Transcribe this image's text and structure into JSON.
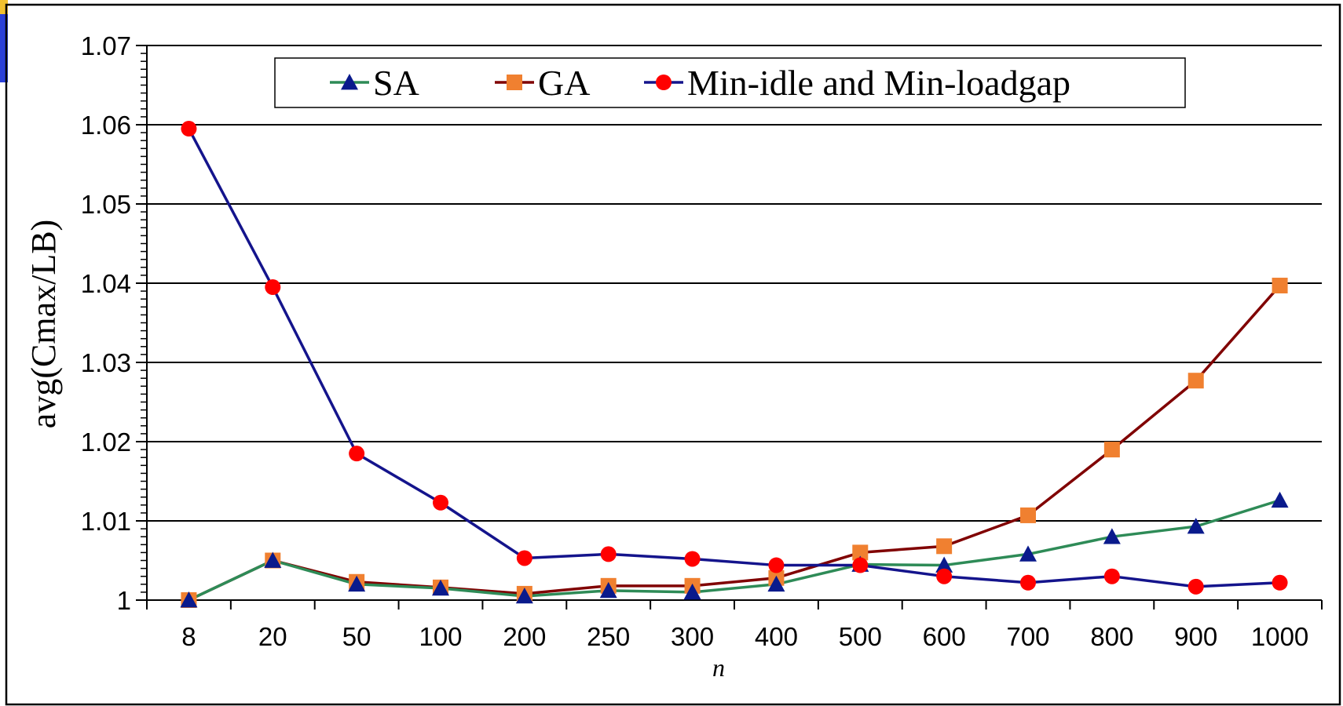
{
  "chart_data": {
    "type": "line",
    "title": "",
    "xlabel": "n",
    "ylabel": "avg(Cmax/LB)",
    "categories": [
      "8",
      "20",
      "50",
      "100",
      "200",
      "250",
      "300",
      "400",
      "500",
      "600",
      "700",
      "800",
      "900",
      "1000"
    ],
    "ylim": [
      1,
      1.07
    ],
    "yticks": [
      "1",
      "1.01",
      "1.02",
      "1.03",
      "1.04",
      "1.05",
      "1.06",
      "1.07"
    ],
    "grid": "horizontal major",
    "legend_position": "top",
    "series": [
      {
        "name": "SA",
        "color": "#2e8b57",
        "marker_color": "#0a1a8c",
        "marker": "triangle",
        "values": [
          1.0,
          1.005,
          1.002,
          1.0015,
          1.0005,
          1.0012,
          1.001,
          1.002,
          1.0045,
          1.0044,
          1.0058,
          1.008,
          1.0093,
          1.0126
        ]
      },
      {
        "name": "GA",
        "color": "#800000",
        "marker_color": "#f08030",
        "marker": "square",
        "values": [
          1.0,
          1.005,
          1.0023,
          1.0016,
          1.0008,
          1.0018,
          1.0018,
          1.0028,
          1.006,
          1.0068,
          1.0107,
          1.019,
          1.0277,
          1.0397
        ]
      },
      {
        "name": "Min-idle and Min-loadgap",
        "color": "#14148c",
        "marker_color": "#ff0000",
        "marker": "circle",
        "values": [
          1.0595,
          1.0395,
          1.0185,
          1.0123,
          1.0053,
          1.0058,
          1.0052,
          1.0044,
          1.0044,
          1.003,
          1.0022,
          1.003,
          1.0017,
          1.0022
        ]
      }
    ]
  }
}
